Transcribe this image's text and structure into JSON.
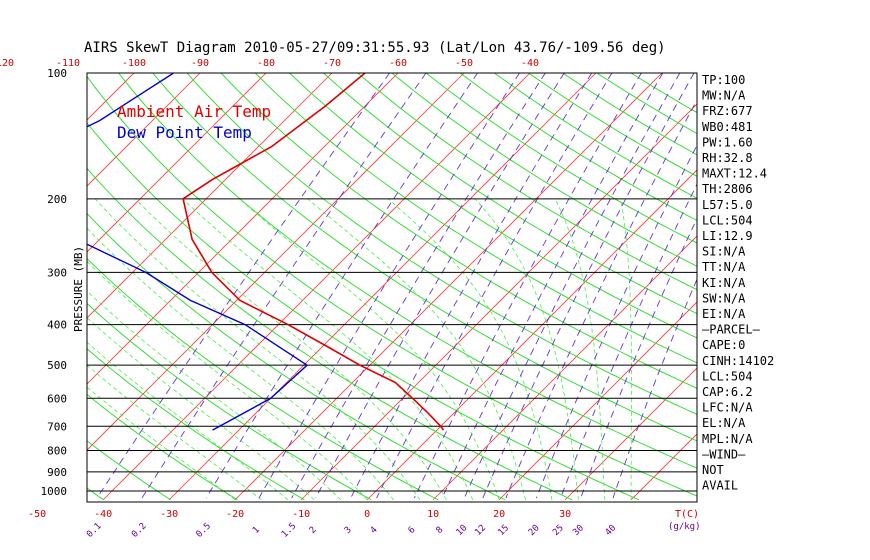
{
  "title": "AIRS SkewT Diagram 2010-05-27/09:31:55.93 (Lat/Lon 43.76/-109.56 deg)",
  "colors": {
    "isotherm": "#ff3333",
    "dry_adiabat": "#22dd22",
    "moist_adiabat": "#44ee44",
    "mixing_ratio": "#6633cc",
    "ambient": "#dd0000",
    "dewpoint": "#0000cc",
    "text": "#000000",
    "temp_labels": "#cc0000",
    "mixing_labels": "#660099"
  },
  "legend": [
    {
      "label": "Ambient Air Temp",
      "color": "#dd0000"
    },
    {
      "label": "Dew Point Temp",
      "color": "#0000cc"
    }
  ],
  "chart_data": {
    "type": "line",
    "title": "AIRS SkewT Diagram 2010-05-27/09:31:55.93 (Lat/Lon 43.76/-109.56 deg)",
    "ylabel": "PRESSURE (MB)",
    "xlabel_bottom": "T(C)",
    "mixing_ratio_unit": "(g/kg)",
    "pressure_ticks": [
      100,
      200,
      300,
      400,
      500,
      600,
      700,
      800,
      900,
      1000
    ],
    "pressure_tick_labels": [
      "100",
      "200",
      "300",
      "400",
      "500",
      "600",
      "700",
      "800",
      "900",
      "1000"
    ],
    "ylim": [
      100,
      1050
    ],
    "y_scale": "log",
    "skew_slope": 19.2,
    "top_temp_labels": [
      "-120",
      "-110",
      "-100",
      "-90",
      "-80",
      "-70",
      "-60",
      "-50",
      "-40"
    ],
    "top_temp_values": [
      -120,
      -110,
      -100,
      -90,
      -80,
      -70,
      -60,
      -50,
      -40
    ],
    "bottom_temp_labels": [
      "-50",
      "-40",
      "-30",
      "-20",
      "-10",
      "0",
      "10",
      "20",
      "30"
    ],
    "bottom_temp_values": [
      -50,
      -40,
      -30,
      -20,
      -10,
      0,
      10,
      20,
      30
    ],
    "mixing_ratio_labels": [
      "0.1",
      "0.2",
      "0.5",
      "1",
      "1.5",
      "2",
      "3",
      "4",
      "6",
      "8",
      "10",
      "12",
      "15",
      "20",
      "25",
      "30",
      "40"
    ],
    "mixing_ratio_values": [
      0.1,
      0.2,
      0.5,
      1,
      1.5,
      2,
      3,
      4,
      6,
      8,
      10,
      12,
      15,
      20,
      25,
      30,
      40
    ],
    "series": [
      {
        "name": "Ambient Air Temp",
        "pressure": [
          100,
          120,
          150,
          180,
          200,
          250,
          300,
          350,
          400,
          450,
          500,
          550,
          600,
          650,
          700,
          715
        ],
        "temperature": [
          -65,
          -66,
          -68,
          -72,
          -73.5,
          -66,
          -58,
          -49.5,
          -38.5,
          -29.5,
          -21.5,
          -13.5,
          -8.5,
          -4,
          0,
          1
        ]
      },
      {
        "name": "Dew Point Temp",
        "pressure": [
          100,
          130,
          160,
          200,
          250,
          300,
          350,
          400,
          500,
          600,
          700,
          715
        ],
        "temperature": [
          -94,
          -98,
          -104,
          -101.5,
          -83.5,
          -68,
          -57,
          -45,
          -29.5,
          -30,
          -33.5,
          -34
        ]
      }
    ]
  },
  "indices": [
    "TP:100",
    "MW:N/A",
    "FRZ:677",
    "WB0:481",
    "PW:1.60",
    "RH:32.8",
    "MAXT:12.4",
    "TH:2806",
    "L57:5.0",
    "LCL:504",
    "LI:12.9",
    "SI:N/A",
    "TT:N/A",
    "KI:N/A",
    "SW:N/A",
    "EI:N/A",
    "—PARCEL—",
    "CAPE:0",
    "CINH:14102",
    "LCL:504",
    "CAP:6.2",
    "LFC:N/A",
    "EL:N/A",
    "MPL:N/A",
    "—WIND—",
    "NOT",
    "AVAIL"
  ]
}
